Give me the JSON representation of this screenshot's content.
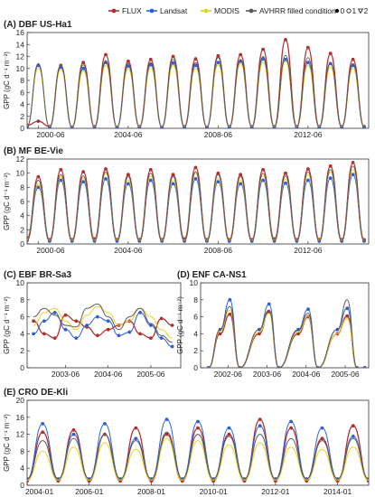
{
  "legend": {
    "series": [
      {
        "name": "FLUX",
        "color": "#b03030"
      },
      {
        "name": "Landsat",
        "color": "#2e5fd8"
      },
      {
        "name": "MODIS",
        "color": "#e8d21f"
      },
      {
        "name": "AVHRR",
        "color": "#5a5a5a"
      }
    ],
    "filled_label": "filled condition",
    "filled_values": [
      "0",
      "1",
      "2"
    ]
  },
  "chart_data": [
    {
      "type": "line",
      "title": "(A) DBF US-Ha1",
      "ylabel": "GPP (gC d⁻¹ m⁻²)",
      "xlim": [
        2000.0,
        2015.2
      ],
      "ylim": [
        0,
        16
      ],
      "yticks": [
        0,
        2,
        4,
        6,
        8,
        10,
        12,
        14,
        16
      ],
      "xticks": [
        {
          "v": 2000.5,
          "label": "2000-06"
        },
        {
          "v": 2004.5,
          "label": "2004-06"
        },
        {
          "v": 2008.5,
          "label": "2008-06"
        },
        {
          "v": 2012.5,
          "label": "2012-06"
        }
      ],
      "x": [
        2000.0,
        2000.5,
        2001.0,
        2001.5,
        2002.0,
        2002.5,
        2003.0,
        2003.5,
        2004.0,
        2004.5,
        2005.0,
        2005.5,
        2006.0,
        2006.5,
        2007.0,
        2007.5,
        2008.0,
        2008.5,
        2009.0,
        2009.5,
        2010.0,
        2010.5,
        2011.0,
        2011.5,
        2012.0,
        2012.5,
        2013.0,
        2013.5,
        2014.0,
        2014.5,
        2015.0
      ],
      "series": [
        {
          "name": "FLUX",
          "values": [
            0.5,
            1.2,
            0.3,
            10.5,
            0.2,
            11.0,
            0.3,
            12.3,
            0.2,
            11.2,
            0.3,
            11.5,
            0.2,
            12.0,
            0.3,
            11.6,
            0.2,
            12.1,
            0.3,
            12.3,
            0.3,
            13.2,
            0.3,
            14.8,
            0.3,
            13.5,
            0.3,
            12.5,
            0.3,
            11.5,
            0.3
          ]
        },
        {
          "name": "Landsat",
          "values": [
            0.3,
            10.5,
            0.2,
            10.2,
            0.2,
            10.0,
            0.2,
            11.0,
            0.2,
            10.4,
            0.2,
            10.6,
            0.2,
            10.9,
            0.2,
            10.5,
            0.2,
            11.0,
            0.2,
            11.2,
            0.2,
            11.6,
            0.2,
            11.5,
            0.2,
            11.0,
            0.2,
            10.8,
            0.2,
            10.5,
            0.2
          ]
        },
        {
          "name": "MODIS",
          "values": [
            0.4,
            10.0,
            0.3,
            9.8,
            0.3,
            9.6,
            0.3,
            10.5,
            0.3,
            9.9,
            0.3,
            10.1,
            0.3,
            10.5,
            0.3,
            10.0,
            0.3,
            10.6,
            0.3,
            10.8,
            0.3,
            11.0,
            0.3,
            11.2,
            0.3,
            10.5,
            0.3,
            10.2,
            0.3,
            10.0,
            0.3
          ]
        },
        {
          "name": "AVHRR",
          "values": [
            0.3,
            10.8,
            0.2,
            10.5,
            0.2,
            10.6,
            0.2,
            11.3,
            0.2,
            10.8,
            0.2,
            11.0,
            0.2,
            11.5,
            0.2,
            11.0,
            0.2,
            11.8,
            0.2,
            11.5,
            0.2,
            12.0,
            0.2,
            12.2,
            0.2,
            11.8,
            0.2,
            11.0,
            0.2,
            10.8,
            0.2
          ]
        }
      ]
    },
    {
      "type": "line",
      "title": "(B) MF BE-Vie",
      "ylabel": "GPP (gC d⁻¹ m⁻²)",
      "xlim": [
        2000.0,
        2015.2
      ],
      "ylim": [
        0,
        12
      ],
      "yticks": [
        0,
        2,
        4,
        6,
        8,
        10,
        12
      ],
      "xticks": [
        {
          "v": 2000.5,
          "label": "2000-06"
        },
        {
          "v": 2004.5,
          "label": "2004-06"
        },
        {
          "v": 2008.5,
          "label": "2008-06"
        },
        {
          "v": 2012.5,
          "label": "2012-06"
        }
      ],
      "x": [
        2000.0,
        2000.5,
        2001.0,
        2001.5,
        2002.0,
        2002.5,
        2003.0,
        2003.5,
        2004.0,
        2004.5,
        2005.0,
        2005.5,
        2006.0,
        2006.5,
        2007.0,
        2007.5,
        2008.0,
        2008.5,
        2009.0,
        2009.5,
        2010.0,
        2010.5,
        2011.0,
        2011.5,
        2012.0,
        2012.5,
        2013.0,
        2013.5,
        2014.0,
        2014.5,
        2015.0
      ],
      "series": [
        {
          "name": "FLUX",
          "values": [
            0.8,
            9.5,
            0.6,
            10.5,
            0.6,
            10.2,
            0.7,
            10.6,
            0.6,
            9.8,
            0.6,
            10.5,
            0.6,
            9.8,
            0.7,
            10.8,
            0.6,
            10.0,
            0.6,
            9.8,
            0.6,
            10.5,
            0.7,
            10.0,
            0.6,
            10.6,
            0.6,
            11.0,
            0.6,
            11.5,
            0.6
          ]
        },
        {
          "name": "Landsat",
          "values": [
            0.5,
            8.0,
            0.4,
            9.0,
            0.4,
            8.8,
            0.4,
            9.2,
            0.4,
            8.5,
            0.4,
            9.0,
            0.4,
            8.5,
            0.4,
            9.2,
            0.4,
            8.8,
            0.4,
            8.5,
            0.4,
            9.0,
            0.4,
            8.6,
            0.4,
            9.0,
            0.4,
            9.3,
            0.4,
            9.8,
            0.4
          ]
        },
        {
          "name": "MODIS",
          "values": [
            0.6,
            8.5,
            0.5,
            9.5,
            0.5,
            9.3,
            0.5,
            10.0,
            0.5,
            9.0,
            0.5,
            9.6,
            0.5,
            9.0,
            0.5,
            10.0,
            0.5,
            9.3,
            0.5,
            9.0,
            0.5,
            9.6,
            0.5,
            9.2,
            0.5,
            9.8,
            0.5,
            10.2,
            0.5,
            10.5,
            0.5
          ]
        },
        {
          "name": "AVHRR",
          "values": [
            0.5,
            9.0,
            0.4,
            9.8,
            0.4,
            9.6,
            0.4,
            10.2,
            0.4,
            9.5,
            0.4,
            10.0,
            0.4,
            9.5,
            0.4,
            10.2,
            0.4,
            9.8,
            0.4,
            9.5,
            0.4,
            10.0,
            0.4,
            9.6,
            0.4,
            10.2,
            0.4,
            10.5,
            0.4,
            11.0,
            0.4
          ]
        }
      ]
    },
    {
      "type": "line",
      "title": "(C) EBF BR-Sa3",
      "ylabel": "GPP (gC d⁻¹ m⁻²)",
      "xlim": [
        2002.6,
        2006.2
      ],
      "ylim": [
        0,
        10
      ],
      "yticks": [
        0,
        2,
        4,
        6,
        8,
        10
      ],
      "xticks": [
        {
          "v": 2003.5,
          "label": "2003-06"
        },
        {
          "v": 2004.5,
          "label": "2004-06"
        },
        {
          "v": 2005.5,
          "label": "2005-06"
        }
      ],
      "x": [
        2002.75,
        2003.0,
        2003.25,
        2003.5,
        2003.75,
        2004.0,
        2004.25,
        2004.5,
        2004.75,
        2005.0,
        2005.25,
        2005.5,
        2005.75,
        2006.0
      ],
      "series": [
        {
          "name": "FLUX",
          "values": [
            5.5,
            4.0,
            3.5,
            6.2,
            5.5,
            4.8,
            3.8,
            4.5,
            5.0,
            5.5,
            4.0,
            3.5,
            5.8,
            5.0
          ]
        },
        {
          "name": "Landsat",
          "values": [
            4.0,
            5.5,
            6.5,
            4.5,
            3.5,
            5.0,
            6.0,
            5.5,
            3.8,
            4.2,
            6.5,
            5.0,
            3.5,
            2.5
          ]
        },
        {
          "name": "MODIS",
          "values": [
            5.0,
            6.5,
            7.0,
            5.5,
            4.5,
            6.2,
            7.2,
            6.5,
            5.0,
            5.5,
            7.0,
            6.0,
            4.5,
            3.5
          ]
        },
        {
          "name": "AVHRR",
          "values": [
            6.0,
            7.0,
            6.2,
            5.0,
            4.8,
            7.0,
            7.5,
            6.0,
            4.5,
            6.0,
            7.0,
            5.2,
            3.8,
            3.0
          ]
        }
      ]
    },
    {
      "type": "line",
      "title": "(D) ENF CA-NS1",
      "ylabel": "GPP (gC d⁻¹ m⁻²)",
      "xlim": [
        2001.8,
        2006.1
      ],
      "ylim": [
        0,
        10
      ],
      "yticks": [
        0,
        2,
        4,
        6,
        8,
        10
      ],
      "xticks": [
        {
          "v": 2002.5,
          "label": "2002-06"
        },
        {
          "v": 2003.5,
          "label": "2003-06"
        },
        {
          "v": 2004.5,
          "label": "2004-06"
        },
        {
          "v": 2005.5,
          "label": "2005-06"
        }
      ],
      "x": [
        2002.0,
        2002.3,
        2002.55,
        2002.8,
        2003.3,
        2003.55,
        2003.8,
        2004.3,
        2004.55,
        2004.8,
        2005.3,
        2005.55,
        2005.8,
        2006.0
      ],
      "series": [
        {
          "name": "FLUX",
          "values": [
            0.0,
            4.0,
            6.3,
            0.0,
            4.0,
            6.6,
            0.0,
            4.0,
            6.0,
            0.0,
            4.0,
            6.1,
            0.0,
            0.0
          ]
        },
        {
          "name": "Landsat",
          "values": [
            0.0,
            4.5,
            8.0,
            0.0,
            4.5,
            7.5,
            0.0,
            4.5,
            6.9,
            0.0,
            4.5,
            7.0,
            0.0,
            0.0
          ]
        },
        {
          "name": "MODIS",
          "values": [
            0.0,
            4.3,
            6.8,
            0.0,
            4.2,
            6.4,
            0.0,
            4.2,
            6.1,
            0.0,
            4.0,
            5.8,
            0.0,
            0.0
          ]
        },
        {
          "name": "AVHRR",
          "values": [
            0.0,
            4.5,
            7.2,
            0.0,
            4.5,
            6.8,
            0.0,
            4.4,
            6.4,
            0.0,
            4.5,
            8.0,
            0.0,
            0.0
          ]
        }
      ]
    },
    {
      "type": "line",
      "title": "(E) CRO DE-Kli",
      "ylabel": "GPP (gC d⁻¹ m⁻²)",
      "xlim": [
        2004.0,
        2015.0
      ],
      "ylim": [
        0,
        20
      ],
      "yticks": [
        0,
        4,
        8,
        12,
        16,
        20
      ],
      "xticks": [
        {
          "v": 2004.0,
          "label": "2004-01"
        },
        {
          "v": 2006.0,
          "label": "2006-01"
        },
        {
          "v": 2008.0,
          "label": "2008-01"
        },
        {
          "v": 2010.0,
          "label": "2010-01"
        },
        {
          "v": 2012.0,
          "label": "2012-01"
        },
        {
          "v": 2014.0,
          "label": "2014-01"
        }
      ],
      "x": [
        2004.0,
        2004.5,
        2005.0,
        2005.5,
        2006.0,
        2006.5,
        2007.0,
        2007.5,
        2008.0,
        2008.5,
        2009.0,
        2009.5,
        2010.0,
        2010.5,
        2011.0,
        2011.5,
        2012.0,
        2012.5,
        2013.0,
        2013.5,
        2014.0,
        2014.5,
        2015.0
      ],
      "series": [
        {
          "name": "FLUX",
          "values": [
            1.0,
            12.5,
            1.0,
            13.0,
            1.0,
            12.0,
            1.0,
            13.5,
            1.0,
            12.0,
            1.0,
            13.5,
            1.0,
            12.0,
            1.0,
            15.5,
            1.0,
            13.5,
            1.0,
            11.0,
            1.0,
            14.0,
            1.0
          ]
        },
        {
          "name": "Landsat",
          "values": [
            1.5,
            14.5,
            1.5,
            12.0,
            1.5,
            14.5,
            1.5,
            11.0,
            1.5,
            15.5,
            1.5,
            15.0,
            1.5,
            13.5,
            1.5,
            14.0,
            1.5,
            15.0,
            1.5,
            13.5,
            1.5,
            11.5,
            1.5
          ]
        },
        {
          "name": "MODIS",
          "values": [
            1.2,
            8.0,
            1.2,
            9.0,
            1.2,
            10.0,
            1.2,
            8.5,
            1.2,
            11.0,
            1.2,
            10.5,
            1.2,
            9.5,
            1.2,
            10.0,
            1.2,
            9.0,
            1.2,
            8.5,
            1.2,
            9.0,
            1.2
          ]
        },
        {
          "name": "AVHRR",
          "values": [
            1.5,
            10.5,
            1.5,
            11.0,
            1.5,
            12.0,
            1.5,
            10.5,
            1.5,
            12.5,
            1.5,
            12.0,
            1.5,
            11.5,
            1.5,
            12.0,
            1.5,
            11.0,
            1.5,
            10.5,
            1.5,
            11.0,
            1.5
          ]
        }
      ]
    }
  ]
}
